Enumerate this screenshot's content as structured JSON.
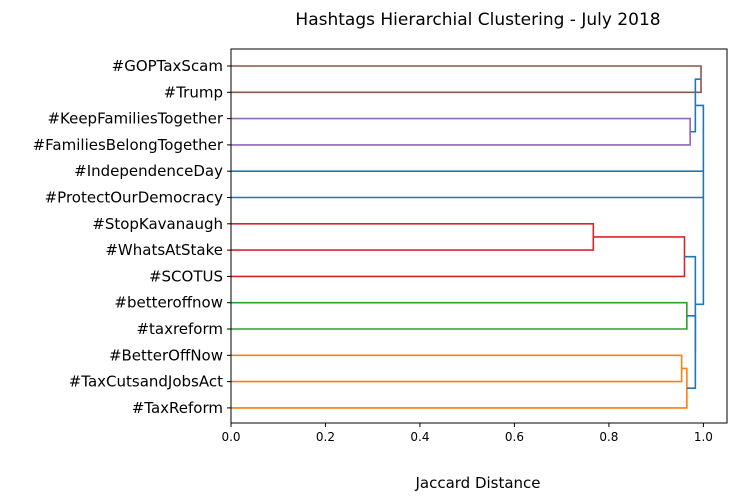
{
  "chart_data": {
    "type": "dendrogram",
    "title": "Hashtags Hierarchial Clustering - July 2018",
    "xlabel": "Jaccard Distance",
    "xlim": [
      0,
      1.05
    ],
    "xticks": [
      "0.0",
      "0.2",
      "0.4",
      "0.6",
      "0.8",
      "1.0"
    ],
    "leaves": [
      "#GOPTaxScam",
      "#Trump",
      "#KeepFamiliesTogether",
      "#FamiliesBelongTogether",
      "#IndependenceDay",
      "#ProtectOurDemocracy",
      "#StopKavanaugh",
      "#WhatsAtStake",
      "#SCOTUS",
      "#betteroffnow",
      "#taxreform",
      "#BetterOffNow",
      "#TaxCutsandJobsAct",
      "#TaxReform"
    ],
    "colors": {
      "brown": "#8c564b",
      "purple": "#9467bd",
      "blue": "#1f77b4",
      "red": "#d62728",
      "green": "#2ca02c",
      "orange": "#ff7f0e"
    },
    "merges": [
      {
        "a": "#GOPTaxScam",
        "b": "#Trump",
        "distance": 0.995,
        "color": "brown"
      },
      {
        "a": "#KeepFamiliesTogether",
        "b": "#FamiliesBelongTogether",
        "distance": 0.972,
        "color": "purple"
      },
      {
        "a": "#StopKavanaugh",
        "b": "#WhatsAtStake",
        "distance": 0.767,
        "color": "red"
      },
      {
        "a": "(#StopKavanaugh,#WhatsAtStake)",
        "b": "#SCOTUS",
        "distance": 0.96,
        "color": "red"
      },
      {
        "a": "#betteroffnow",
        "b": "#taxreform",
        "distance": 0.965,
        "color": "green"
      },
      {
        "a": "#BetterOffNow",
        "b": "#TaxCutsandJobsAct",
        "distance": 0.954,
        "color": "orange"
      },
      {
        "a": "(#BetterOffNow,#TaxCutsandJobsAct)",
        "b": "#TaxReform",
        "distance": 0.965,
        "color": "orange"
      },
      {
        "a": "orange-cluster",
        "b": "green-cluster",
        "distance": 0.983,
        "color": "blue"
      },
      {
        "a": "red-cluster",
        "b": "orange+green",
        "distance": 0.983,
        "color": "blue"
      },
      {
        "a": "purple-cluster",
        "b": "brown-cluster",
        "distance": 0.983,
        "color": "blue"
      },
      {
        "a": "all-clusters",
        "b": "#IndependenceDay,#ProtectOurDemocracy",
        "distance": 1.0,
        "color": "blue"
      }
    ]
  }
}
